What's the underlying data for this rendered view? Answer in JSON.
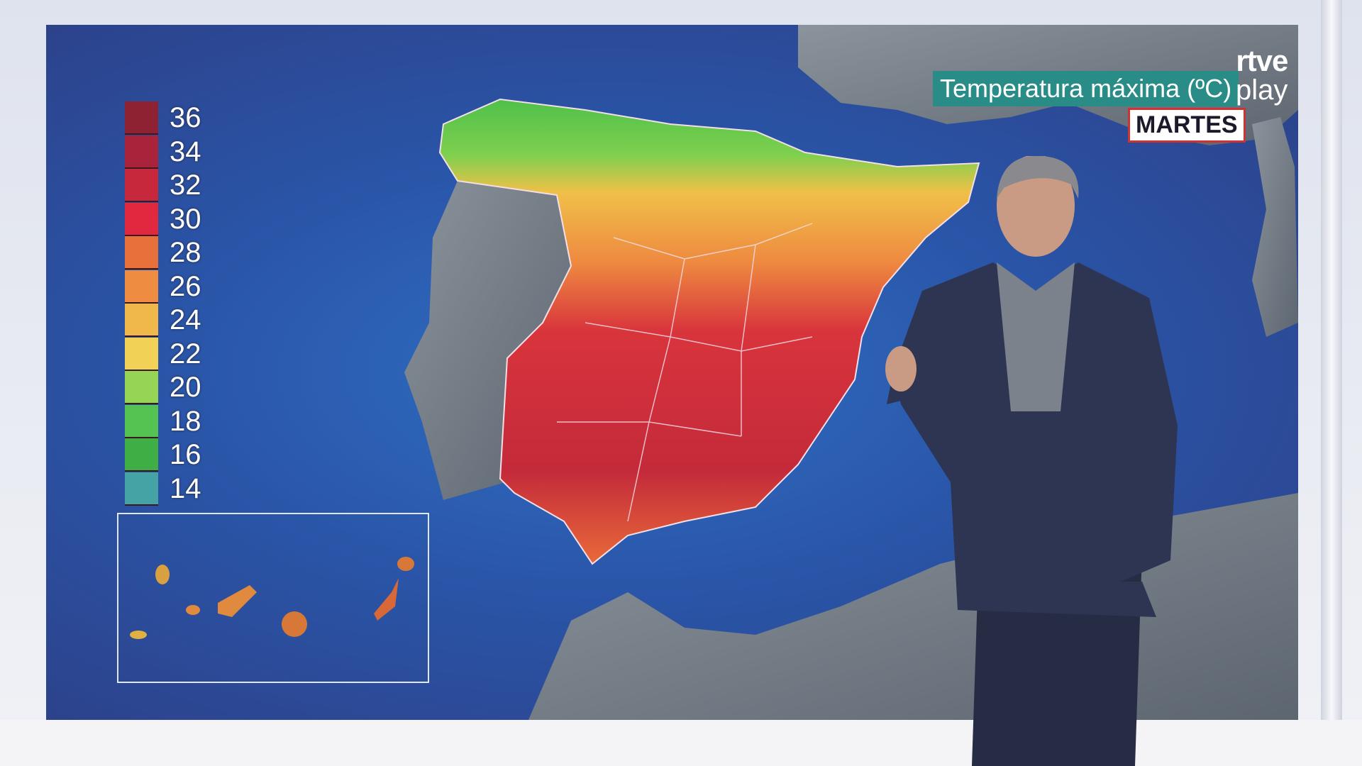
{
  "broadcast": {
    "title": "Temperatura máxima (ºC)",
    "day": "MARTES",
    "logo_top": "rtve",
    "logo_bottom": "play"
  },
  "legend": {
    "items": [
      {
        "label": "36",
        "color": "#8e2232"
      },
      {
        "label": "34",
        "color": "#a9243a"
      },
      {
        "label": "32",
        "color": "#c8283c"
      },
      {
        "label": "30",
        "color": "#e2283e"
      },
      {
        "label": "28",
        "color": "#e8703a"
      },
      {
        "label": "26",
        "color": "#ee8c42"
      },
      {
        "label": "24",
        "color": "#f0b84a"
      },
      {
        "label": "22",
        "color": "#f2d256"
      },
      {
        "label": "20",
        "color": "#96d456"
      },
      {
        "label": "18",
        "color": "#54c352"
      },
      {
        "label": "16",
        "color": "#3fae44"
      },
      {
        "label": "14",
        "color": "#45a3a6"
      }
    ]
  },
  "colors": {
    "sea": "#2a55a8",
    "land": "#7c8590",
    "title_bg": "#2a8c86"
  }
}
